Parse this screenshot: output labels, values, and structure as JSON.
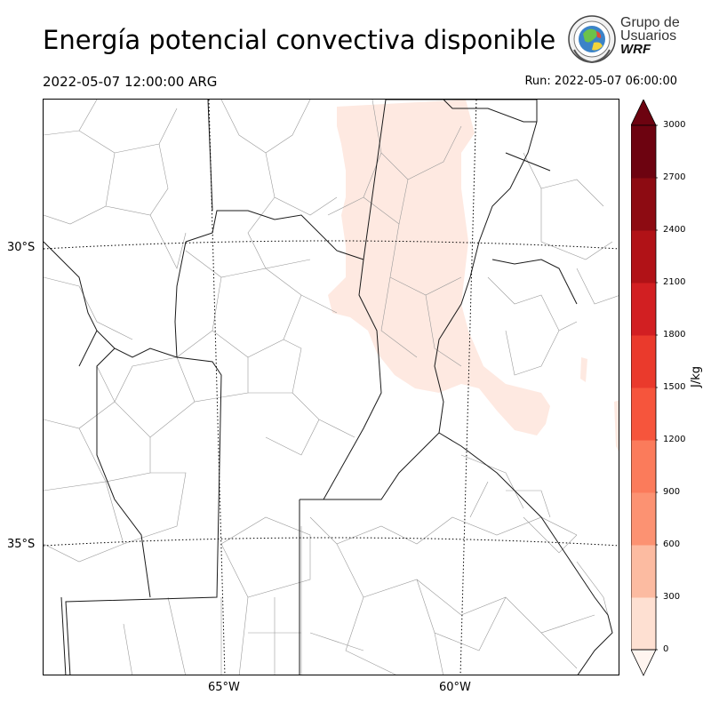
{
  "header": {
    "title": "Energía potencial convectiva disponible",
    "valid_time": "2022-05-07 12:00:00 ARG",
    "run_time": "Run: 2022-05-07 06:00:00"
  },
  "logo": {
    "line1": "Grupo de",
    "line2": "Usuarios",
    "line3": "WRF"
  },
  "map": {
    "lat_labels": [
      "30°S",
      "35°S"
    ],
    "lon_labels": [
      "65°W",
      "60°W"
    ],
    "field_color": "#fee9e1",
    "border_color": "#000000",
    "county_color": "#9a9a9a"
  },
  "colorbar": {
    "unit": "J/kg",
    "ticks": [
      "0",
      "300",
      "600",
      "900",
      "1200",
      "1500",
      "1800",
      "2100",
      "2400",
      "2700",
      "3000"
    ],
    "colors": [
      "#fff5f0",
      "#fee0d2",
      "#fcbba1",
      "#fc9272",
      "#fb7b5b",
      "#f6553c",
      "#ea3a2c",
      "#d21f22",
      "#b11217",
      "#8d0b12",
      "#6d0310"
    ],
    "extend_top_color": "#6d0310",
    "extend_bottom_color": "#fff5f0"
  }
}
